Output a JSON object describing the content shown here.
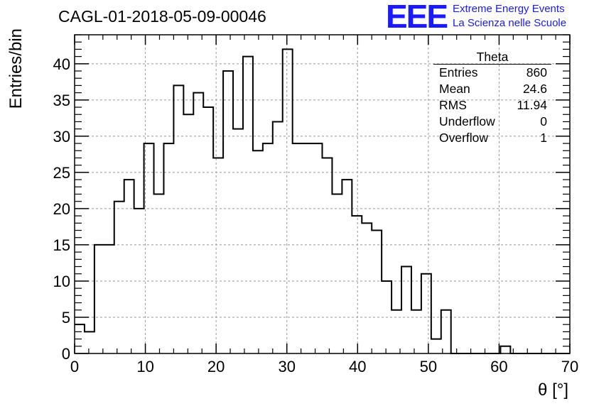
{
  "page_title": "CAGL-01-2018-05-09-00046",
  "logo": {
    "mark": "EEE",
    "line1": "Extreme Energy Events",
    "line2": "La Scienza nelle Scuole",
    "color": "#1a1aff"
  },
  "stats_box": {
    "title": "Theta",
    "rows": [
      {
        "label": "Entries",
        "value": "860"
      },
      {
        "label": "Mean",
        "value": "24.6"
      },
      {
        "label": "RMS",
        "value": "11.94"
      },
      {
        "label": "Underflow",
        "value": "0"
      },
      {
        "label": "Overflow",
        "value": "1"
      }
    ]
  },
  "chart_data": {
    "type": "bar",
    "title": "CAGL-01-2018-05-09-00046",
    "xlabel": "θ [°]",
    "ylabel": "Entries/bin",
    "xlim": [
      0,
      70
    ],
    "ylim": [
      0,
      44
    ],
    "grid": true,
    "bin_width": 1.4,
    "x_ticks": [
      0,
      10,
      20,
      30,
      40,
      50,
      60,
      70
    ],
    "y_ticks": [
      0,
      5,
      10,
      15,
      20,
      25,
      30,
      35,
      40
    ],
    "values": [
      4,
      3,
      15,
      15,
      21,
      24,
      20,
      29,
      22,
      29,
      37,
      33,
      36,
      34,
      27,
      39,
      31,
      41,
      28,
      29,
      32,
      42,
      29,
      29,
      29,
      27,
      22,
      24,
      19,
      18,
      17,
      10,
      6,
      12,
      6,
      11,
      2,
      6,
      0,
      0,
      0,
      0,
      0,
      1,
      0,
      0,
      0,
      0,
      0,
      0
    ]
  }
}
